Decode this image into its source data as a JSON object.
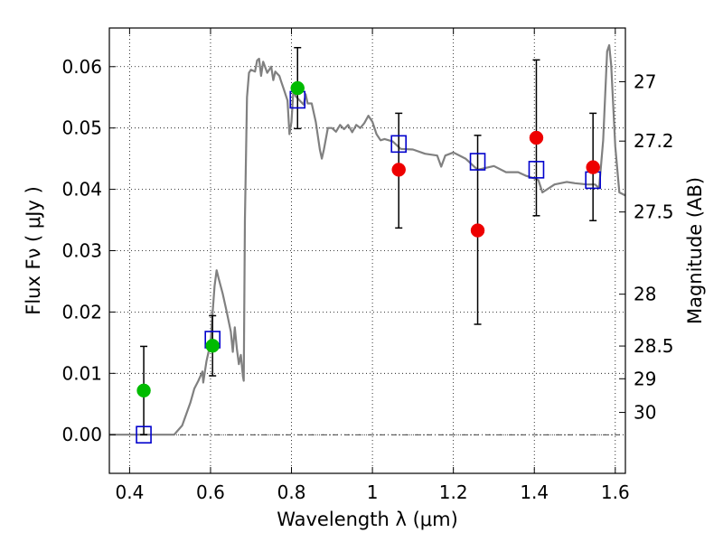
{
  "chart_data": {
    "type": "scatter",
    "xlabel": "Wavelength  λ (μm)",
    "ylabel": "Flux  Fν  ( μJy )",
    "y2label": "Magnitude (AB)",
    "xlim": [
      0.35,
      1.625
    ],
    "ylim": [
      -0.0063,
      0.0663
    ],
    "grid": true,
    "x_ticks": [
      {
        "value": 0.4,
        "label": "0.4"
      },
      {
        "value": 0.6,
        "label": "0.6"
      },
      {
        "value": 0.8,
        "label": "0.8"
      },
      {
        "value": 1.0,
        "label": "1"
      },
      {
        "value": 1.2,
        "label": "1.2"
      },
      {
        "value": 1.4,
        "label": "1.4"
      },
      {
        "value": 1.6,
        "label": "1.6"
      }
    ],
    "y_ticks": [
      {
        "value": 0.0,
        "label": "0.00"
      },
      {
        "value": 0.01,
        "label": "0.01"
      },
      {
        "value": 0.02,
        "label": "0.02"
      },
      {
        "value": 0.03,
        "label": "0.03"
      },
      {
        "value": 0.04,
        "label": "0.04"
      },
      {
        "value": 0.05,
        "label": "0.05"
      },
      {
        "value": 0.06,
        "label": "0.06"
      }
    ],
    "y2_ticks": [
      {
        "mag": 27.0,
        "label": "27"
      },
      {
        "mag": 27.2,
        "label": "27.2"
      },
      {
        "mag": 27.5,
        "label": "27.5"
      },
      {
        "mag": 28.0,
        "label": "28"
      },
      {
        "mag": 28.5,
        "label": "28.5"
      },
      {
        "mag": 29.0,
        "label": "29"
      },
      {
        "mag": 30.0,
        "label": "30"
      }
    ],
    "series": [
      {
        "kind": "line",
        "color": "#808080",
        "x": [
          0.35,
          0.5,
          0.51,
          0.53,
          0.55,
          0.56,
          0.57,
          0.58,
          0.582,
          0.585,
          0.59,
          0.6,
          0.605,
          0.61,
          0.615,
          0.62,
          0.63,
          0.64,
          0.65,
          0.655,
          0.66,
          0.665,
          0.67,
          0.675,
          0.68,
          0.682,
          0.685,
          0.69,
          0.695,
          0.7,
          0.71,
          0.715,
          0.72,
          0.725,
          0.73,
          0.74,
          0.75,
          0.755,
          0.76,
          0.77,
          0.775,
          0.78,
          0.79,
          0.795,
          0.8,
          0.805,
          0.81,
          0.82,
          0.83,
          0.835,
          0.84,
          0.85,
          0.86,
          0.87,
          0.875,
          0.88,
          0.89,
          0.9,
          0.91,
          0.92,
          0.93,
          0.94,
          0.95,
          0.96,
          0.97,
          0.98,
          0.99,
          1.0,
          1.01,
          1.02,
          1.03,
          1.05,
          1.07,
          1.1,
          1.13,
          1.16,
          1.17,
          1.18,
          1.2,
          1.23,
          1.26,
          1.3,
          1.33,
          1.36,
          1.38,
          1.4,
          1.41,
          1.42,
          1.45,
          1.48,
          1.5,
          1.53,
          1.55,
          1.56,
          1.57,
          1.58,
          1.585,
          1.59,
          1.6,
          1.61,
          1.625
        ],
        "y": [
          0.0,
          0.0,
          0.0,
          0.0015,
          0.0052,
          0.0075,
          0.0088,
          0.0103,
          0.0085,
          0.0098,
          0.012,
          0.015,
          0.0198,
          0.0242,
          0.0268,
          0.0255,
          0.023,
          0.02,
          0.0168,
          0.0135,
          0.0175,
          0.014,
          0.0115,
          0.013,
          0.0095,
          0.0088,
          0.035,
          0.055,
          0.059,
          0.0595,
          0.0592,
          0.061,
          0.0613,
          0.0585,
          0.0608,
          0.059,
          0.06,
          0.0578,
          0.0592,
          0.0585,
          0.0575,
          0.0565,
          0.0545,
          0.049,
          0.051,
          0.0565,
          0.0552,
          0.0545,
          0.0538,
          0.0555,
          0.054,
          0.054,
          0.051,
          0.0465,
          0.045,
          0.0465,
          0.05,
          0.05,
          0.0494,
          0.0505,
          0.0498,
          0.0505,
          0.0493,
          0.0505,
          0.05,
          0.0508,
          0.052,
          0.051,
          0.049,
          0.048,
          0.0482,
          0.0478,
          0.0466,
          0.0465,
          0.0458,
          0.0455,
          0.0437,
          0.0455,
          0.046,
          0.045,
          0.0432,
          0.0438,
          0.0428,
          0.0428,
          0.0422,
          0.0418,
          0.0415,
          0.0395,
          0.0408,
          0.0412,
          0.041,
          0.0408,
          0.0408,
          0.0402,
          0.048,
          0.0625,
          0.0635,
          0.0602,
          0.047,
          0.0395,
          0.039
        ]
      },
      {
        "kind": "marker",
        "marker": "square",
        "color": "#0000cc",
        "x": [
          0.435,
          0.605,
          0.815,
          1.065,
          1.26,
          1.405,
          1.545
        ],
        "y": [
          0.0,
          0.0155,
          0.0546,
          0.0474,
          0.0445,
          0.0432,
          0.0415
        ]
      },
      {
        "kind": "marker",
        "marker": "circle",
        "color": "#00bb00",
        "x": [
          0.435,
          0.605,
          0.815
        ],
        "y": [
          0.0072,
          0.0145,
          0.0565
        ],
        "yerr_low": [
          0.0,
          0.0096,
          0.0499
        ],
        "yerr_high": [
          0.0144,
          0.0194,
          0.0631
        ]
      },
      {
        "kind": "marker",
        "marker": "circle",
        "color": "#ee0000",
        "x": [
          1.065,
          1.26,
          1.405,
          1.545
        ],
        "y": [
          0.0432,
          0.0333,
          0.0484,
          0.0436
        ],
        "yerr_low": [
          0.0337,
          0.018,
          0.0357,
          0.0349
        ],
        "yerr_high": [
          0.0524,
          0.0488,
          0.0611,
          0.0524
        ]
      }
    ]
  }
}
